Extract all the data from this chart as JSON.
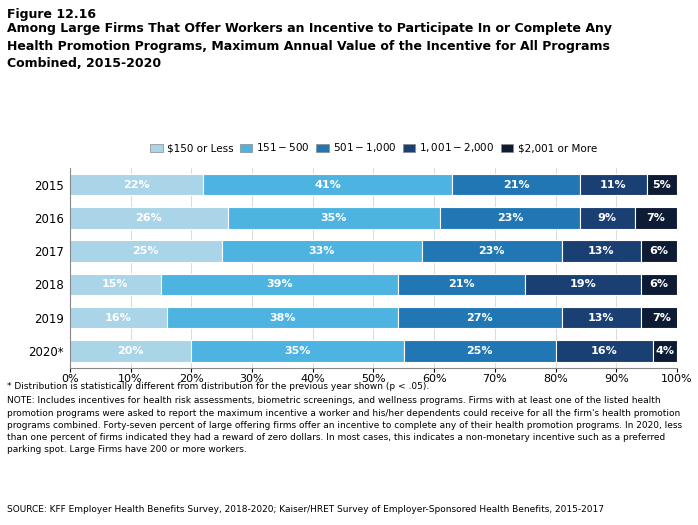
{
  "title_line1": "Figure 12.16",
  "title_line2": "Among Large Firms That Offer Workers an Incentive to Participate In or Complete Any\nHealth Promotion Programs, Maximum Annual Value of the Incentive for All Programs\nCombined, 2015-2020",
  "years": [
    "2015",
    "2016",
    "2017",
    "2018",
    "2019",
    "2020*"
  ],
  "categories": [
    "$150 or Less",
    "$151 - $500",
    "$501 - $1,000",
    "$1,001 - $2,000",
    "$2,001 or More"
  ],
  "colors": [
    "#aad4e8",
    "#4db3e0",
    "#2077b4",
    "#1a3f72",
    "#0d1b35"
  ],
  "data": [
    [
      22,
      41,
      21,
      11,
      5
    ],
    [
      26,
      35,
      23,
      9,
      7
    ],
    [
      25,
      33,
      23,
      13,
      6
    ],
    [
      15,
      39,
      21,
      19,
      6
    ],
    [
      16,
      38,
      27,
      13,
      7
    ],
    [
      20,
      35,
      25,
      16,
      4
    ]
  ],
  "footnote1": "* Distribution is statistically different from distribution for the previous year shown (p < .05).",
  "footnote2": "NOTE: Includes incentives for health risk assessments, biometric screenings, and wellness programs. Firms with at least one of the listed health\npromotion programs were asked to report the maximum incentive a worker and his/her dependents could receive for all the firm's health promotion\nprograms combined. Forty-seven percent of large offering firms offer an incentive to complete any of their health promotion programs. In 2020, less\nthan one percent of firms indicated they had a reward of zero dollars. In most cases, this indicates a non-monetary incentive such as a preferred\nparking spot. Large Firms have 200 or more workers.",
  "footnote3": "SOURCE: KFF Employer Health Benefits Survey, 2018-2020; Kaiser/HRET Survey of Employer-Sponsored Health Benefits, 2015-2017",
  "xlim": [
    0,
    100
  ],
  "xticks": [
    0,
    10,
    20,
    30,
    40,
    50,
    60,
    70,
    80,
    90,
    100
  ],
  "xtick_labels": [
    "0%",
    "10%",
    "20%",
    "30%",
    "40%",
    "50%",
    "60%",
    "70%",
    "80%",
    "90%",
    "100%"
  ]
}
